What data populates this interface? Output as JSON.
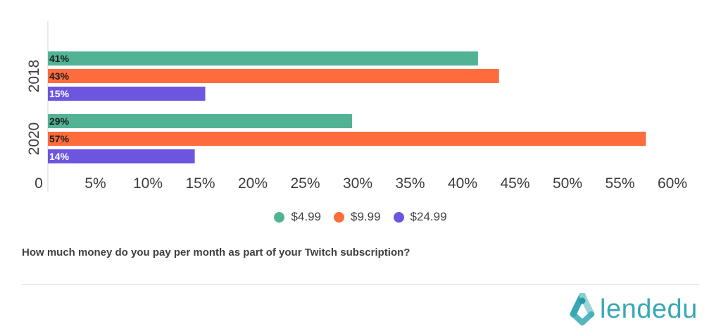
{
  "chart_data": {
    "type": "bar",
    "orientation": "horizontal",
    "categories": [
      "2018",
      "2020"
    ],
    "series": [
      {
        "name": "$4.99",
        "values": [
          41,
          29
        ],
        "labels": [
          "41%",
          "29%"
        ],
        "color": "#52b394"
      },
      {
        "name": "$9.99",
        "values": [
          43,
          57
        ],
        "labels": [
          "43%",
          "57%"
        ],
        "color": "#fd6c3c"
      },
      {
        "name": "$24.99",
        "values": [
          15,
          14
        ],
        "labels": [
          "15%",
          "14%"
        ],
        "color": "#6c56e0"
      }
    ],
    "xlim": [
      0,
      60
    ],
    "x_ticks": [
      "0",
      "5%",
      "10%",
      "15%",
      "20%",
      "25%",
      "30%",
      "35%",
      "40%",
      "45%",
      "50%",
      "55%",
      "60%"
    ],
    "legend_position": "bottom",
    "grid": false,
    "title": ""
  },
  "question": "How much money do you pay per month as part of your Twitch subscription?",
  "brand": {
    "name": "lendedu",
    "icon": "lendedu-logo-icon",
    "color": "#37a9b5"
  }
}
